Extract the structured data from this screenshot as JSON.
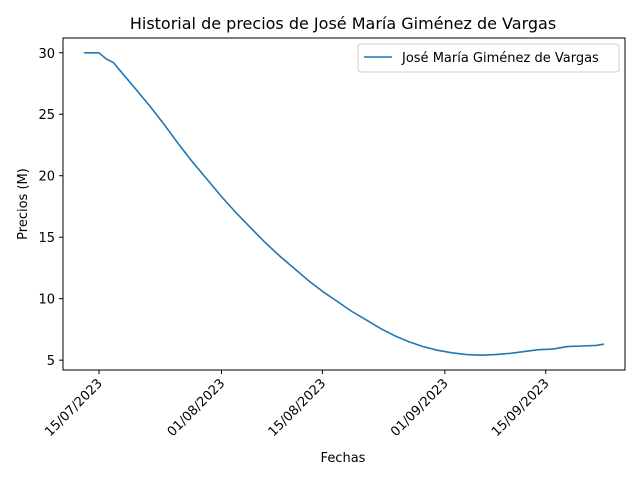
{
  "chart_data": {
    "type": "line",
    "title": "Historial de precios de José María Giménez de Vargas",
    "xlabel": "Fechas",
    "ylabel": "Precios (M)",
    "legend": {
      "position": "top-right"
    },
    "grid": false,
    "color": "#1f77b4",
    "x_ticks": [
      "15/07/2023",
      "01/08/2023",
      "15/08/2023",
      "01/09/2023",
      "15/09/2023"
    ],
    "y_ticks": [
      "5",
      "10",
      "15",
      "20",
      "25",
      "30"
    ],
    "xlim": [
      "2023-07-10",
      "2023-09-26"
    ],
    "ylim": [
      4.2,
      31.2
    ],
    "series": [
      {
        "name": "José María Giménez de Vargas",
        "x": [
          "2023-07-13",
          "2023-07-15",
          "2023-07-16",
          "2023-07-17",
          "2023-07-18",
          "2023-07-20",
          "2023-07-22",
          "2023-07-24",
          "2023-07-26",
          "2023-07-28",
          "2023-07-30",
          "2023-08-01",
          "2023-08-03",
          "2023-08-05",
          "2023-08-07",
          "2023-08-09",
          "2023-08-11",
          "2023-08-13",
          "2023-08-15",
          "2023-08-17",
          "2023-08-19",
          "2023-08-21",
          "2023-08-23",
          "2023-08-25",
          "2023-08-27",
          "2023-08-29",
          "2023-08-31",
          "2023-09-02",
          "2023-09-04",
          "2023-09-06",
          "2023-09-08",
          "2023-09-10",
          "2023-09-12",
          "2023-09-14",
          "2023-09-16",
          "2023-09-18",
          "2023-09-20",
          "2023-09-22",
          "2023-09-23"
        ],
        "y": [
          30.0,
          30.0,
          29.5,
          29.2,
          28.5,
          27.1,
          25.7,
          24.2,
          22.6,
          21.1,
          19.7,
          18.3,
          17.0,
          15.8,
          14.6,
          13.5,
          12.5,
          11.5,
          10.6,
          9.8,
          9.0,
          8.3,
          7.6,
          7.0,
          6.5,
          6.1,
          5.8,
          5.6,
          5.45,
          5.4,
          5.45,
          5.55,
          5.7,
          5.85,
          5.9,
          6.1,
          6.15,
          6.2,
          6.3
        ]
      }
    ]
  }
}
